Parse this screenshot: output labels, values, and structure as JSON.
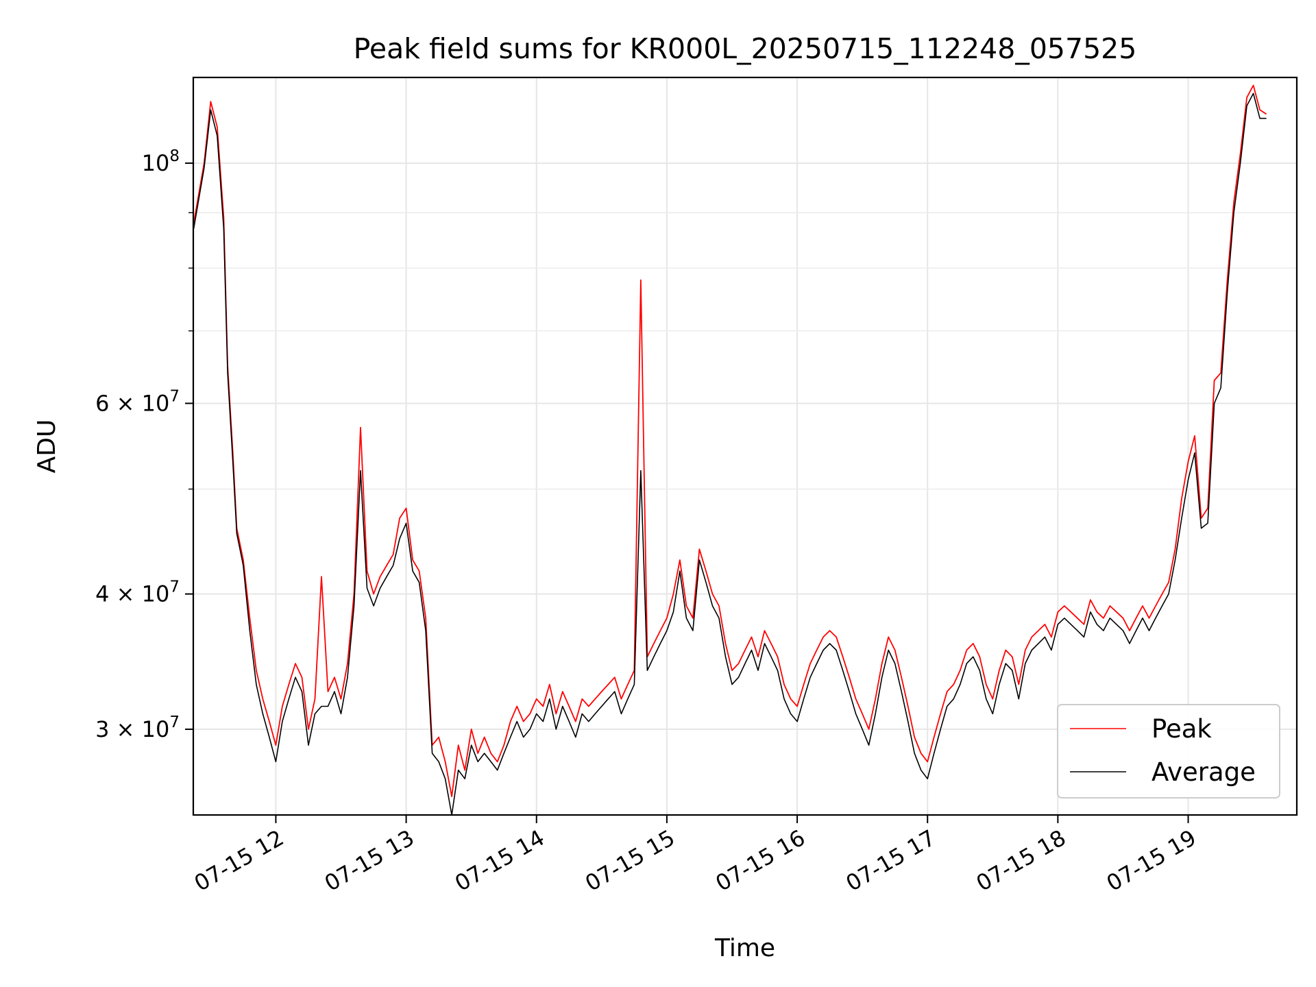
{
  "chart_data": {
    "type": "line",
    "title": "Peak field sums for KR000L_20250715_112248_057525",
    "xlabel": "Time",
    "ylabel": "ADU",
    "yscale": "log",
    "grid": true,
    "legend_placement": "lower-right",
    "xlim": [
      "2025-07-15 11:22",
      "2025-07-15 19:50"
    ],
    "ylim": [
      25000000,
      120000000
    ],
    "x_ticks": [
      "07-15 12",
      "07-15 13",
      "07-15 14",
      "07-15 15",
      "07-15 16",
      "07-15 17",
      "07-15 18",
      "07-15 19"
    ],
    "y_ticks": [
      {
        "value": 30000000,
        "mant": "3",
        "exp": "7"
      },
      {
        "value": 40000000,
        "mant": "4",
        "exp": "7"
      },
      {
        "value": 60000000,
        "mant": "6",
        "exp": "7"
      },
      {
        "value": 100000000,
        "mant": "",
        "exp": "8"
      }
    ],
    "x_time_hours": [
      11.37,
      11.45,
      11.5,
      11.55,
      11.6,
      11.63,
      11.67,
      11.7,
      11.75,
      11.8,
      11.85,
      11.9,
      11.95,
      12.0,
      12.05,
      12.1,
      12.15,
      12.2,
      12.25,
      12.3,
      12.35,
      12.4,
      12.45,
      12.5,
      12.55,
      12.6,
      12.65,
      12.7,
      12.75,
      12.8,
      12.85,
      12.9,
      12.95,
      13.0,
      13.05,
      13.1,
      13.15,
      13.2,
      13.25,
      13.3,
      13.35,
      13.4,
      13.45,
      13.5,
      13.55,
      13.6,
      13.65,
      13.7,
      13.75,
      13.8,
      13.85,
      13.9,
      13.95,
      14.0,
      14.05,
      14.1,
      14.15,
      14.2,
      14.25,
      14.3,
      14.35,
      14.4,
      14.45,
      14.5,
      14.55,
      14.6,
      14.65,
      14.7,
      14.75,
      14.8,
      14.85,
      14.9,
      14.95,
      15.0,
      15.05,
      15.1,
      15.15,
      15.2,
      15.25,
      15.3,
      15.35,
      15.4,
      15.45,
      15.5,
      15.55,
      15.6,
      15.65,
      15.7,
      15.75,
      15.8,
      15.85,
      15.9,
      15.95,
      16.0,
      16.05,
      16.1,
      16.15,
      16.2,
      16.25,
      16.3,
      16.35,
      16.4,
      16.45,
      16.5,
      16.55,
      16.6,
      16.65,
      16.7,
      16.75,
      16.8,
      16.85,
      16.9,
      16.95,
      17.0,
      17.05,
      17.1,
      17.15,
      17.2,
      17.25,
      17.3,
      17.35,
      17.4,
      17.45,
      17.5,
      17.55,
      17.6,
      17.65,
      17.7,
      17.75,
      17.8,
      17.85,
      17.9,
      17.95,
      18.0,
      18.05,
      18.1,
      18.15,
      18.2,
      18.25,
      18.3,
      18.35,
      18.4,
      18.45,
      18.5,
      18.55,
      18.6,
      18.65,
      18.7,
      18.75,
      18.8,
      18.85,
      18.9,
      18.95,
      19.0,
      19.05,
      19.1,
      19.15,
      19.2,
      19.25,
      19.3,
      19.35,
      19.4,
      19.45,
      19.5,
      19.55,
      19.6,
      19.65,
      19.7,
      19.75,
      19.8,
      19.83
    ],
    "series": [
      {
        "name": "Peak",
        "color": "#ff0000",
        "values": [
          88000000,
          100000000,
          114000000,
          108000000,
          89000000,
          65000000,
          54000000,
          46000000,
          43000000,
          38000000,
          34000000,
          32000000,
          30500000,
          29000000,
          31500000,
          33000000,
          34500000,
          33500000,
          30000000,
          32000000,
          41500000,
          32500000,
          33500000,
          32000000,
          34500000,
          40000000,
          57000000,
          42000000,
          40000000,
          41500000,
          42500000,
          43500000,
          47000000,
          48000000,
          43000000,
          42000000,
          38000000,
          29000000,
          29500000,
          28000000,
          26000000,
          29000000,
          27500000,
          30000000,
          28500000,
          29500000,
          28500000,
          28000000,
          29000000,
          30500000,
          31500000,
          30500000,
          31000000,
          32000000,
          31500000,
          33000000,
          31000000,
          32500000,
          31500000,
          30500000,
          32000000,
          31500000,
          32000000,
          32500000,
          33000000,
          33500000,
          32000000,
          33000000,
          34000000,
          78000000,
          35000000,
          36000000,
          37000000,
          38000000,
          40000000,
          43000000,
          39000000,
          38000000,
          44000000,
          42000000,
          40000000,
          39000000,
          36000000,
          34000000,
          34500000,
          35500000,
          36500000,
          35000000,
          37000000,
          36000000,
          35000000,
          33000000,
          32000000,
          31500000,
          33000000,
          34500000,
          35500000,
          36500000,
          37000000,
          36500000,
          35000000,
          33500000,
          32000000,
          31000000,
          30000000,
          32000000,
          34500000,
          36500000,
          35500000,
          33500000,
          31500000,
          29500000,
          28500000,
          28000000,
          29500000,
          31000000,
          32500000,
          33000000,
          34000000,
          35500000,
          36000000,
          35000000,
          33000000,
          32000000,
          34000000,
          35500000,
          35000000,
          33000000,
          35500000,
          36500000,
          37000000,
          37500000,
          36500000,
          38500000,
          39000000,
          38500000,
          38000000,
          37500000,
          39500000,
          38500000,
          38000000,
          39000000,
          38500000,
          38000000,
          37000000,
          38000000,
          39000000,
          38000000,
          39000000,
          40000000,
          41000000,
          44000000,
          49000000,
          53000000,
          56000000,
          47000000,
          48000000,
          63000000,
          64000000,
          78000000,
          92000000,
          102000000,
          115000000,
          118000000,
          112000000,
          111000000
        ]
      },
      {
        "name": "Average",
        "color": "#000000",
        "values": [
          87000000,
          99000000,
          112000000,
          106000000,
          87000000,
          64000000,
          53000000,
          45500000,
          42500000,
          37000000,
          33000000,
          31000000,
          29500000,
          28000000,
          30500000,
          32000000,
          33500000,
          32500000,
          29000000,
          31000000,
          31500000,
          31500000,
          32500000,
          31000000,
          33500000,
          39000000,
          52000000,
          40500000,
          39000000,
          40500000,
          41500000,
          42500000,
          45000000,
          46500000,
          42000000,
          41000000,
          37000000,
          28500000,
          28000000,
          27000000,
          25000000,
          27500000,
          27000000,
          29000000,
          28000000,
          28500000,
          28000000,
          27500000,
          28500000,
          29500000,
          30500000,
          29500000,
          30000000,
          31000000,
          30500000,
          32000000,
          30000000,
          31500000,
          30500000,
          29500000,
          31000000,
          30500000,
          31000000,
          31500000,
          32000000,
          32500000,
          31000000,
          32000000,
          33000000,
          52000000,
          34000000,
          35000000,
          36000000,
          37000000,
          38500000,
          42000000,
          38000000,
          37000000,
          43000000,
          41000000,
          39000000,
          38000000,
          35000000,
          33000000,
          33500000,
          34500000,
          35500000,
          34000000,
          36000000,
          35000000,
          34000000,
          32000000,
          31000000,
          30500000,
          32000000,
          33500000,
          34500000,
          35500000,
          36000000,
          35500000,
          34000000,
          32500000,
          31000000,
          30000000,
          29000000,
          31000000,
          33500000,
          35500000,
          34500000,
          32500000,
          30500000,
          28500000,
          27500000,
          27000000,
          28500000,
          30000000,
          31500000,
          32000000,
          33000000,
          34500000,
          35000000,
          34000000,
          32000000,
          31000000,
          33000000,
          34500000,
          34000000,
          32000000,
          34500000,
          35500000,
          36000000,
          36500000,
          35500000,
          37500000,
          38000000,
          37500000,
          37000000,
          36500000,
          38500000,
          37500000,
          37000000,
          38000000,
          37500000,
          37000000,
          36000000,
          37000000,
          38000000,
          37000000,
          38000000,
          39000000,
          40000000,
          43000000,
          47000000,
          51000000,
          54000000,
          46000000,
          46500000,
          60000000,
          62000000,
          76000000,
          90000000,
          100000000,
          113000000,
          116000000,
          110000000,
          110000000
        ]
      }
    ]
  }
}
